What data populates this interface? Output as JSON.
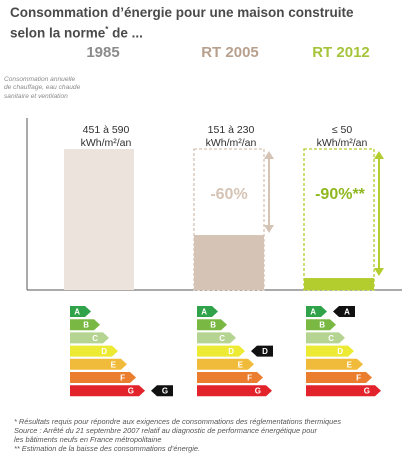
{
  "title": "Consommation d’énergie pour une maison construite selon la norme",
  "title_note_mark": "*",
  "title_end": " de ...",
  "y_axis_label": "Consommation annuelle de chauffage, eau chaude sanitaire et ventilation",
  "chart_data": {
    "type": "bar",
    "categories": [
      "1985",
      "RT 2005",
      "RT 2012"
    ],
    "category_colors": [
      "#8b8b8b",
      "#b8a08e",
      "#a5c43a"
    ],
    "bar_colors": [
      "#ebe3dc",
      "#d5c4b5",
      "#b3cd2e"
    ],
    "value_labels": [
      {
        "main": "451 à 590",
        "unit": "kWh/m²/an"
      },
      {
        "main": "151 à 230",
        "unit": "kWh/m²/an"
      },
      {
        "main": "≤ 50",
        "unit": "kWh/m²/an"
      }
    ],
    "values_low": [
      451,
      151,
      0
    ],
    "values_high": [
      590,
      230,
      50
    ],
    "reduction_labels": [
      "",
      "-60%",
      "-90%**"
    ],
    "reduction_colors": [
      "",
      "#d5c4b5",
      "#8fb81f"
    ],
    "ylim": [
      0,
      590
    ],
    "grid": false
  },
  "energy_labels": {
    "classes": [
      "A",
      "B",
      "C",
      "D",
      "E",
      "F",
      "G"
    ],
    "class_colors": [
      "#2fa24a",
      "#78b843",
      "#b5d391",
      "#ecea33",
      "#f0bb3a",
      "#ea7d2e",
      "#e2232b"
    ],
    "markers": [
      "G",
      "D",
      "A"
    ]
  },
  "footnotes": [
    "* Résultats requis pour répondre aux exigences de consommations des réglementations thermiques",
    "Source : Arrêté du 21 septembre 2007 relatif au diagnostic de performance énergétique pour",
    "les bâtiments neufs en France métropolitaine",
    "** Estimation de la baisse des consommations d’énergie."
  ]
}
